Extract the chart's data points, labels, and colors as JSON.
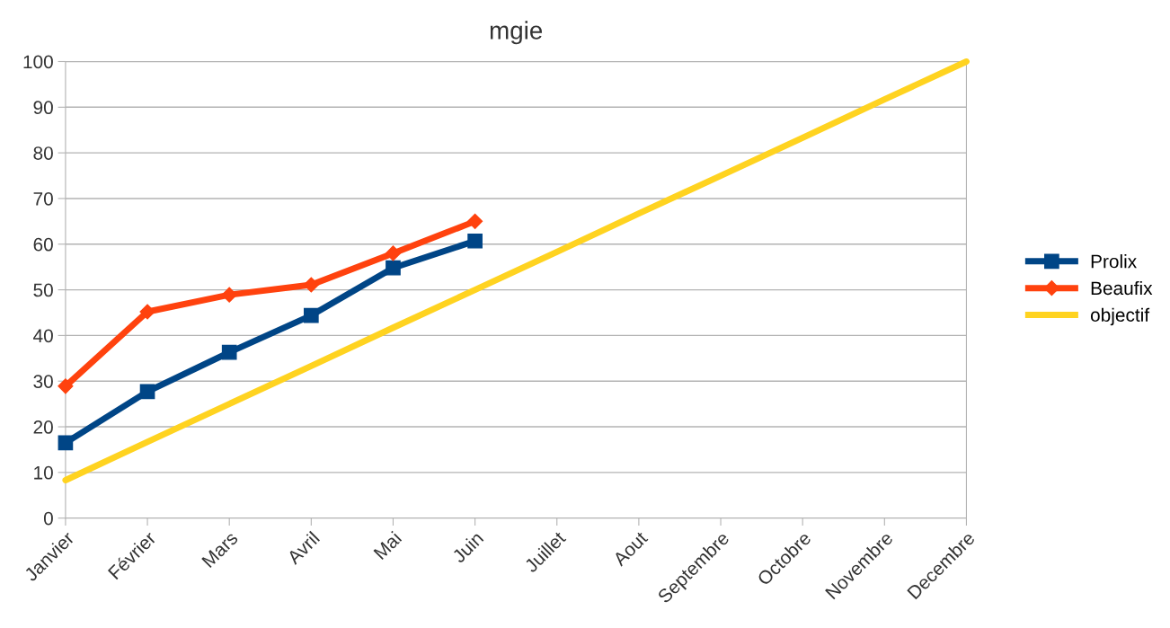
{
  "chart_data": {
    "type": "line",
    "title": "mgie",
    "categories": [
      "Janvier",
      "Février",
      "Mars",
      "Avril",
      "Mai",
      "Juin",
      "Juillet",
      "Aout",
      "Septembre",
      "Octobre",
      "Novembre",
      "Decembre"
    ],
    "series": [
      {
        "name": "Prolix",
        "color": "#004586",
        "marker": "square",
        "values": [
          16.5,
          27.7,
          36.3,
          44.4,
          54.8,
          60.7,
          null,
          null,
          null,
          null,
          null,
          null
        ]
      },
      {
        "name": "Beaufix",
        "color": "#ff420e",
        "marker": "diamond",
        "values": [
          28.9,
          45.2,
          48.9,
          51.1,
          58,
          65,
          null,
          null,
          null,
          null,
          null,
          null
        ]
      },
      {
        "name": "objectif",
        "color": "#ffd320",
        "marker": "none",
        "values": [
          8.3,
          16.7,
          25,
          33.3,
          41.7,
          50,
          58.3,
          66.7,
          75,
          83.3,
          91.7,
          100
        ]
      }
    ],
    "ylim": [
      0,
      100
    ],
    "yticks": [
      0,
      10,
      20,
      30,
      40,
      50,
      60,
      70,
      80,
      90,
      100
    ],
    "grid": "y",
    "legend": "right",
    "line_style": "solid"
  }
}
